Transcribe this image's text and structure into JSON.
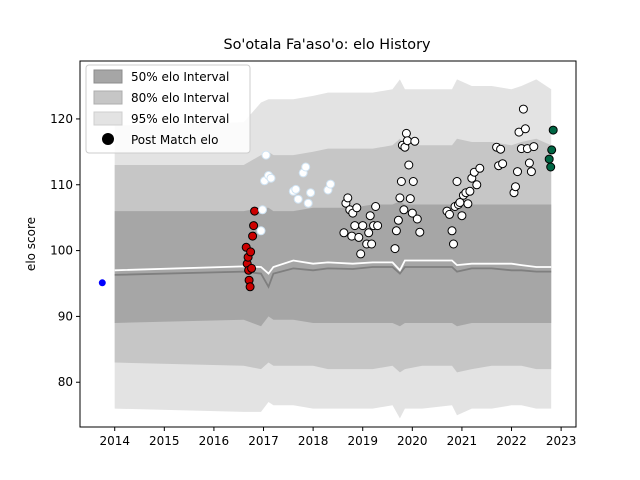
{
  "chart_data": {
    "type": "scatter",
    "title": "So'otala Fa'aso'o: elo History",
    "xlabel": "",
    "ylabel": "elo score",
    "xlim": [
      2013.3,
      2023.3
    ],
    "ylim": [
      73.2,
      128.8
    ],
    "xticks": [
      2014,
      2015,
      2016,
      2017,
      2018,
      2019,
      2020,
      2021,
      2022,
      2023
    ],
    "yticks": [
      80,
      90,
      100,
      110,
      120
    ],
    "grid": false,
    "legend": {
      "placement": "top-left",
      "entries": [
        "50% elo Interval",
        "80% elo Interval",
        "95% elo Interval",
        "Post Match elo"
      ]
    },
    "colors": {
      "band50": "#a6a6a6",
      "band80": "#c6c6c6",
      "band95": "#e3e3e3",
      "median_line": "#7f7f7f",
      "mean_line": "#ffffff",
      "first_point": "#0000ff",
      "group_red": "#cc0000",
      "group_light": "#ffffff",
      "group_white": "#ffffff",
      "group_green": "#006644"
    },
    "bands": {
      "x": [
        2014.0,
        2016.6,
        2016.95,
        2017.1,
        2017.2,
        2017.6,
        2018.0,
        2018.3,
        2018.8,
        2019.2,
        2019.6,
        2019.75,
        2019.85,
        2020.2,
        2020.8,
        2020.9,
        2021.2,
        2021.6,
        2022.0,
        2022.2,
        2022.5,
        2022.8
      ],
      "p50_low": [
        89.0,
        89.5,
        88.5,
        90.0,
        89.5,
        89.5,
        89.0,
        89.0,
        89.0,
        89.0,
        89.0,
        88.5,
        89.0,
        89.0,
        89.0,
        88.5,
        89.0,
        89.0,
        89.0,
        89.0,
        89.0,
        89.0
      ],
      "p50_high": [
        106.0,
        106.0,
        106.5,
        106.5,
        106.0,
        106.0,
        106.5,
        106.5,
        106.5,
        107.0,
        107.0,
        107.5,
        107.0,
        107.0,
        107.0,
        107.0,
        107.0,
        107.0,
        107.0,
        107.0,
        107.0,
        107.0
      ],
      "p80_low": [
        83.0,
        82.5,
        82.0,
        83.0,
        82.5,
        82.5,
        82.5,
        82.0,
        82.0,
        82.0,
        82.5,
        81.5,
        82.0,
        82.5,
        82.5,
        81.5,
        82.0,
        82.5,
        82.5,
        82.5,
        82.0,
        82.0
      ],
      "p80_high": [
        113.0,
        113.0,
        114.5,
        115.0,
        114.5,
        114.5,
        115.0,
        115.5,
        115.5,
        115.5,
        116.0,
        117.0,
        116.0,
        116.0,
        116.0,
        117.0,
        116.5,
        116.5,
        116.0,
        116.5,
        117.0,
        116.0
      ],
      "p95_low": [
        76.0,
        75.5,
        75.5,
        77.0,
        76.5,
        76.5,
        76.0,
        76.0,
        76.0,
        76.0,
        76.5,
        74.5,
        76.0,
        76.0,
        76.5,
        75.0,
        76.0,
        76.0,
        76.5,
        76.5,
        76.0,
        76.0
      ],
      "p95_high": [
        119.0,
        119.5,
        122.5,
        123.0,
        123.0,
        123.0,
        123.5,
        124.0,
        124.0,
        124.0,
        124.5,
        126.0,
        124.5,
        124.5,
        124.5,
        126.0,
        125.0,
        125.0,
        124.5,
        125.0,
        126.0,
        124.5
      ],
      "median": [
        96.3,
        96.8,
        96.5,
        94.5,
        96.5,
        97.3,
        97.0,
        97.3,
        97.2,
        97.5,
        97.5,
        96.5,
        97.5,
        97.5,
        97.5,
        96.8,
        97.3,
        97.3,
        97.0,
        97.0,
        96.8,
        96.8
      ],
      "mean": [
        97.0,
        97.6,
        97.5,
        96.5,
        97.5,
        98.5,
        98.0,
        98.2,
        98.0,
        98.2,
        98.2,
        97.0,
        98.5,
        98.5,
        98.5,
        97.8,
        98.0,
        98.0,
        98.0,
        97.8,
        97.5,
        97.5
      ]
    },
    "series": [
      {
        "group": "first",
        "x": [
          2013.75
        ],
        "y": [
          95.1
        ]
      },
      {
        "group": "red",
        "x": [
          2016.65,
          2016.67,
          2016.69,
          2016.7,
          2016.71,
          2016.73,
          2016.74,
          2016.76,
          2016.78,
          2016.8,
          2016.82
        ],
        "y": [
          100.5,
          98.0,
          99.0,
          97.0,
          95.5,
          94.5,
          99.8,
          97.3,
          102.2,
          103.8,
          106.0
        ]
      },
      {
        "group": "light",
        "x": [
          2016.95,
          2016.98,
          2017.02,
          2017.05,
          2017.1,
          2017.15,
          2017.6,
          2017.65,
          2017.7,
          2017.8,
          2017.85,
          2017.9,
          2017.95,
          2018.3,
          2018.35
        ],
        "y": [
          103.0,
          106.2,
          110.6,
          114.5,
          111.4,
          111.0,
          109.0,
          109.3,
          107.8,
          111.8,
          112.7,
          107.2,
          108.8,
          109.2,
          110.1
        ]
      },
      {
        "group": "white",
        "x": [
          2018.62,
          2018.66,
          2018.7,
          2018.74,
          2018.78,
          2018.8,
          2018.84,
          2018.88,
          2018.92,
          2018.96,
          2019.0,
          2019.08,
          2019.12,
          2019.15,
          2019.18,
          2019.22,
          2019.26,
          2019.3,
          2019.65,
          2019.68,
          2019.72,
          2019.75,
          2019.78,
          2019.8,
          2019.83,
          2019.85,
          2019.88,
          2019.9,
          2019.93,
          2019.96,
          2020.0,
          2020.02,
          2020.05,
          2020.1,
          2020.15,
          2020.7,
          2020.75,
          2020.8,
          2020.83,
          2020.86,
          2020.9,
          2020.93,
          2020.96,
          2021.0,
          2021.03,
          2021.08,
          2021.12,
          2021.16,
          2021.2,
          2021.25,
          2021.3,
          2021.36,
          2021.7,
          2021.74,
          2021.78,
          2021.82,
          2022.05,
          2022.08,
          2022.12,
          2022.15,
          2022.2,
          2022.24,
          2022.28,
          2022.32,
          2022.36,
          2022.4,
          2022.45
        ],
        "y": [
          102.7,
          107.2,
          108.0,
          106.2,
          102.2,
          105.7,
          103.8,
          106.5,
          102.0,
          99.5,
          103.8,
          101.0,
          102.7,
          105.3,
          101.0,
          103.8,
          106.7,
          103.8,
          100.3,
          103.0,
          104.6,
          108.0,
          110.5,
          116.0,
          106.2,
          115.7,
          117.8,
          116.7,
          113.0,
          107.9,
          105.7,
          110.5,
          116.6,
          104.8,
          102.8,
          106.0,
          105.5,
          103.0,
          101.0,
          106.7,
          110.5,
          107.0,
          107.3,
          105.3,
          108.4,
          108.8,
          107.1,
          109.0,
          111.0,
          111.9,
          110.0,
          112.5,
          115.7,
          112.9,
          115.4,
          113.2,
          108.8,
          109.7,
          112.0,
          118.0,
          115.5,
          121.5,
          118.5,
          115.5,
          113.3,
          112.0,
          115.8
        ]
      },
      {
        "group": "green",
        "x": [
          2022.76,
          2022.79,
          2022.81,
          2022.84
        ],
        "y": [
          113.9,
          112.7,
          115.3,
          118.3
        ]
      }
    ]
  }
}
